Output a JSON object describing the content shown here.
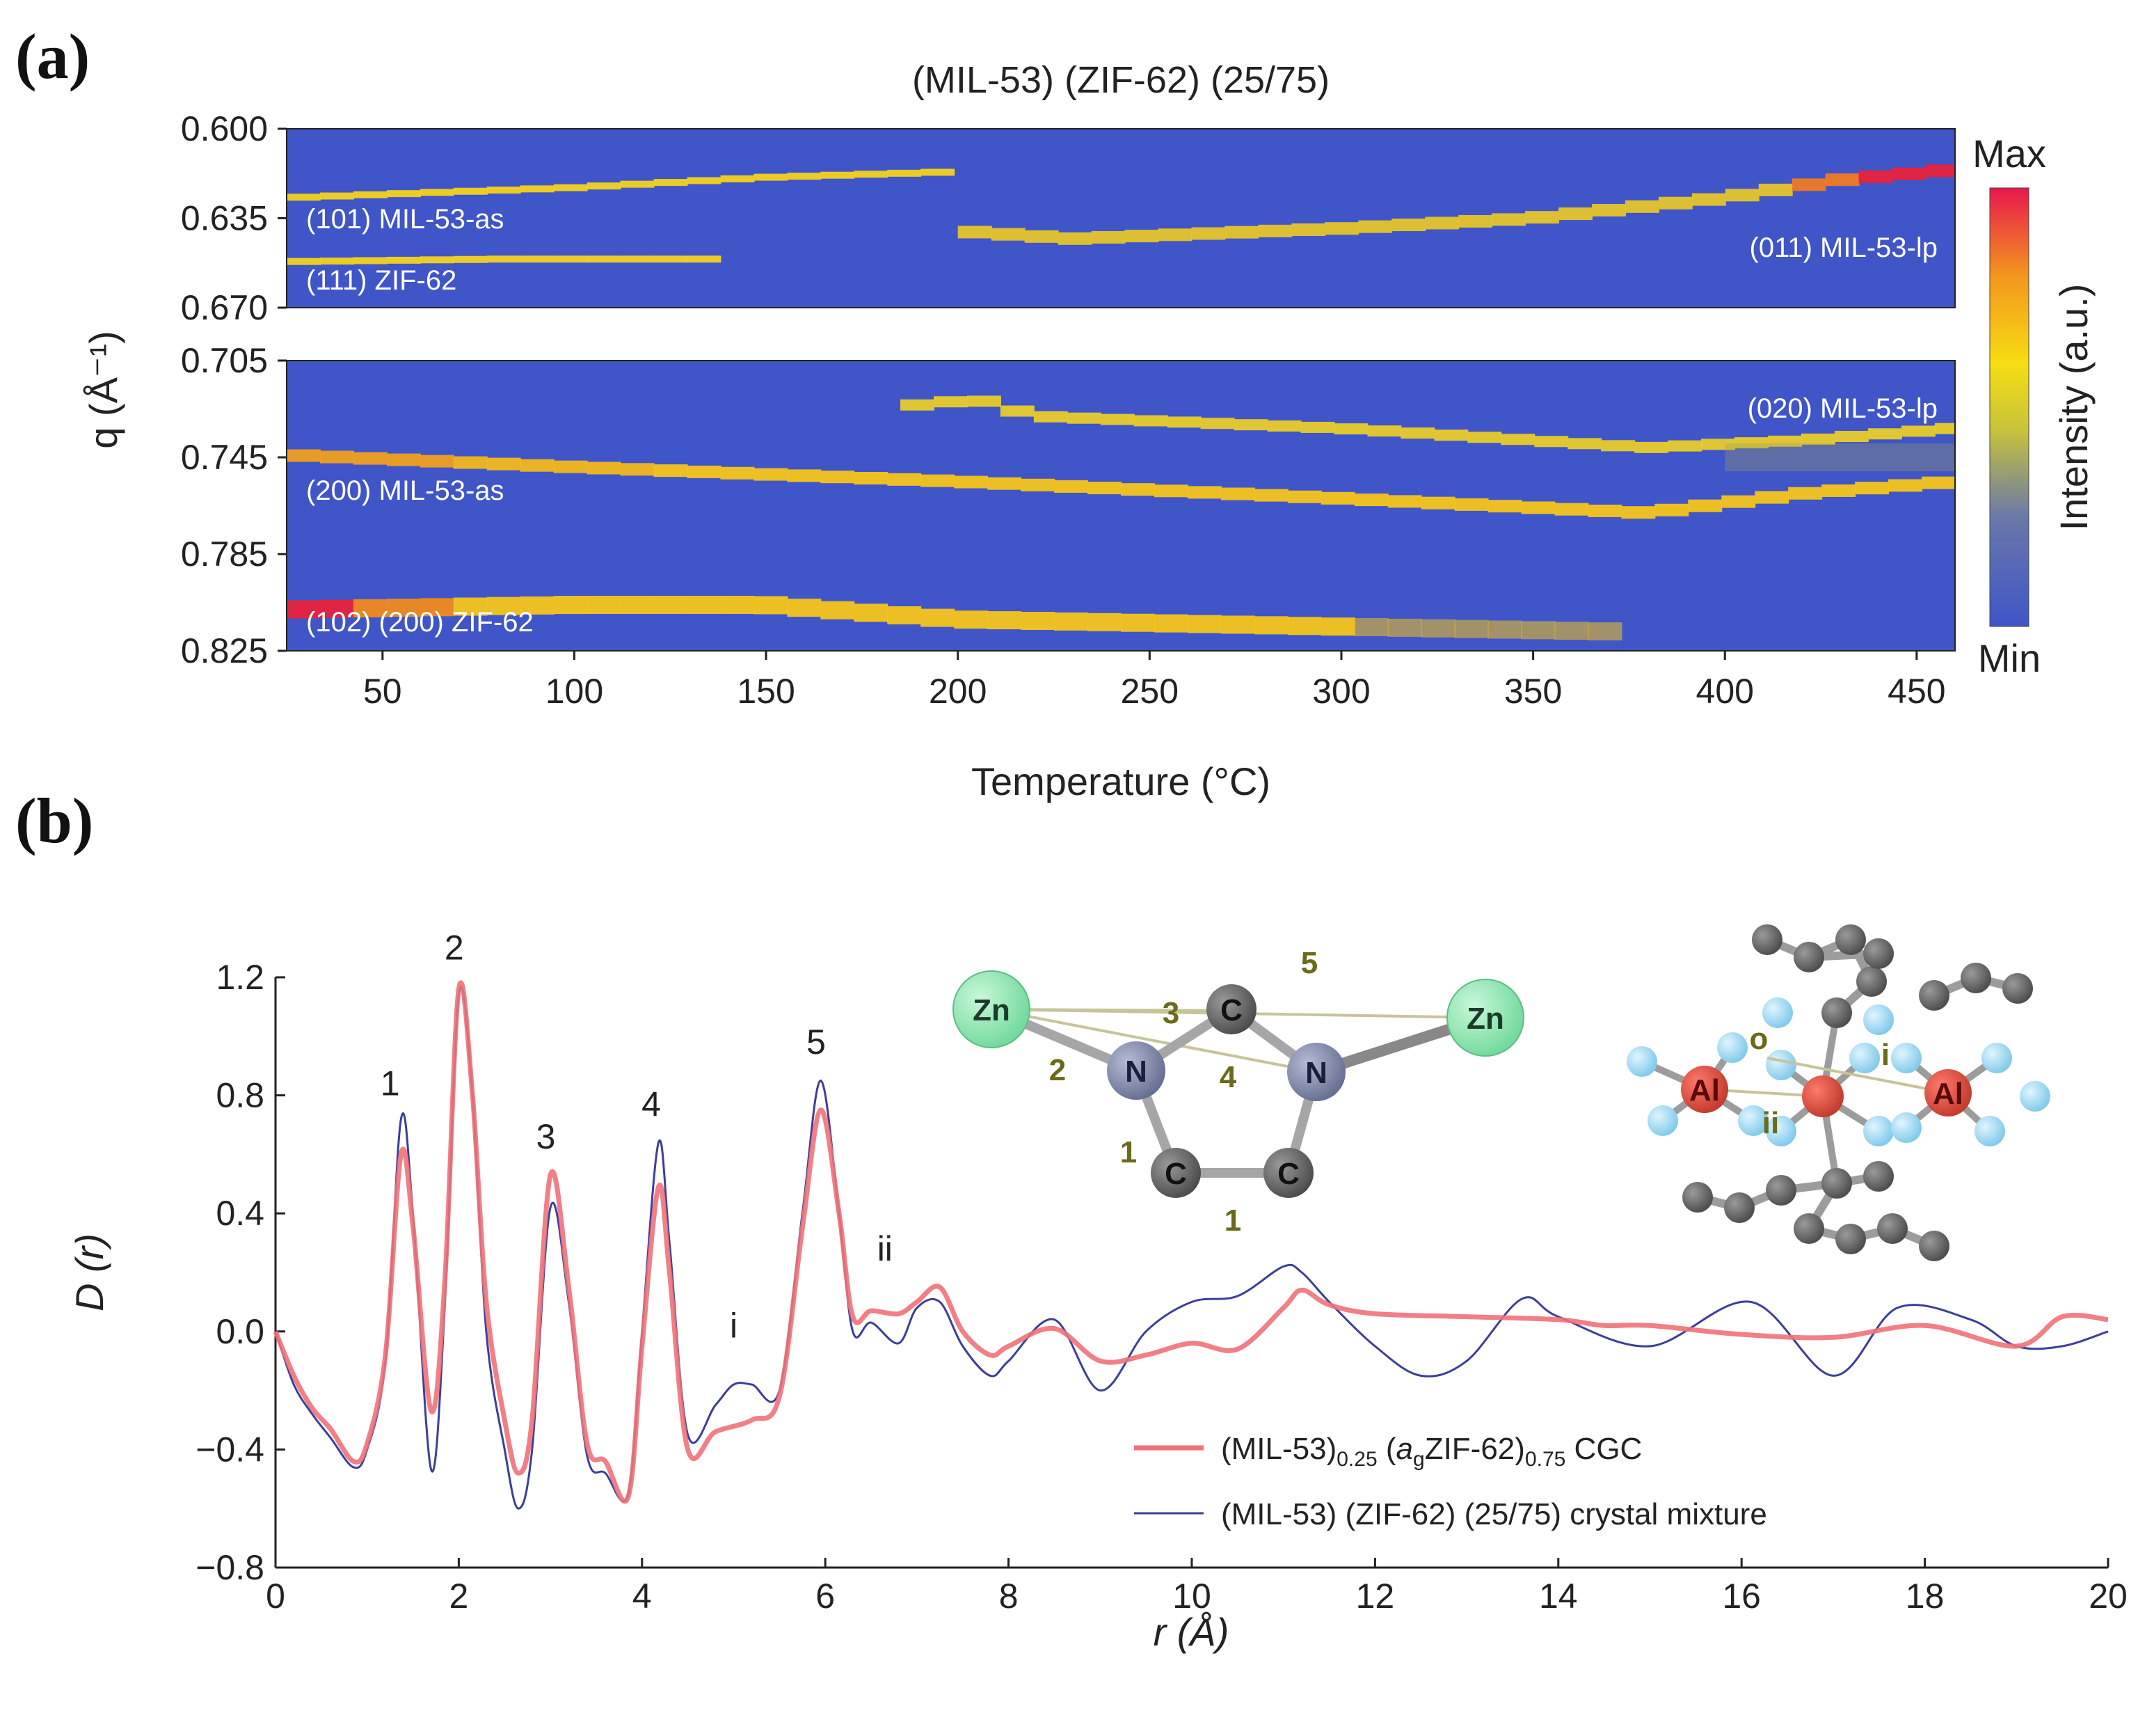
{
  "panel_a_label": "(a)",
  "panel_b_label": "(b)",
  "chart_data": [
    {
      "type": "heatmap",
      "title": "(MIL-53) (ZIF-62) (25/75)",
      "xlabel": "Temperature (°C)",
      "ylabel": "q (Å⁻¹)",
      "xlim": [
        25,
        460
      ],
      "x_ticks": [
        50,
        100,
        150,
        200,
        250,
        300,
        350,
        400,
        450
      ],
      "panels": [
        {
          "ylim": [
            0.6,
            0.67
          ],
          "y_ticks": [
            0.6,
            0.635,
            0.67
          ]
        },
        {
          "ylim": [
            0.705,
            0.825
          ],
          "y_ticks": [
            0.705,
            0.745,
            0.785,
            0.825
          ]
        }
      ],
      "colorbar": {
        "label": "Intensity (a.u.)",
        "max_label": "Max",
        "min_label": "Min"
      },
      "annotations": [
        "(101) MIL-53-as",
        "(111) ZIF-62",
        "(011) MIL-53-lp",
        "(020) MIL-53-lp",
        "(200) MIL-53-as",
        "(102) (200) ZIF-62"
      ],
      "series": [
        {
          "name": "(101) MIL-53-as",
          "points": [
            [
              25,
              0.627
            ],
            [
              100,
              0.623
            ],
            [
              150,
              0.619
            ],
            [
              195,
              0.617
            ]
          ]
        },
        {
          "name": "(111) ZIF-62",
          "points": [
            [
              25,
              0.652
            ],
            [
              80,
              0.651
            ],
            [
              135,
              0.651
            ]
          ]
        },
        {
          "name": "(011) MIL-53-lp",
          "points": [
            [
              200,
              0.64
            ],
            [
              230,
              0.643
            ],
            [
              300,
              0.639
            ],
            [
              350,
              0.635
            ],
            [
              400,
              0.627
            ],
            [
              430,
              0.62
            ],
            [
              460,
              0.616
            ]
          ]
        },
        {
          "name": "(020) MIL-53-lp",
          "points": [
            [
              185,
              0.724
            ],
            [
              205,
              0.721
            ],
            [
              220,
              0.728
            ],
            [
              300,
              0.733
            ],
            [
              380,
              0.741
            ],
            [
              420,
              0.738
            ],
            [
              460,
              0.733
            ]
          ]
        },
        {
          "name": "(200) MIL-53-as",
          "points": [
            [
              25,
              0.744
            ],
            [
              100,
              0.749
            ],
            [
              200,
              0.755
            ],
            [
              300,
              0.762
            ],
            [
              380,
              0.768
            ],
            [
              420,
              0.76
            ],
            [
              460,
              0.755
            ]
          ]
        },
        {
          "name": "(102) (200) ZIF-62",
          "points": [
            [
              25,
              0.808
            ],
            [
              100,
              0.806
            ],
            [
              150,
              0.806
            ],
            [
              200,
              0.812
            ],
            [
              300,
              0.815
            ],
            [
              370,
              0.817
            ]
          ]
        }
      ]
    },
    {
      "type": "line",
      "xlabel": "r (Å)",
      "ylabel": "D (r)",
      "xlim": [
        0,
        20
      ],
      "ylim": [
        -0.8,
        1.2
      ],
      "x_ticks": [
        0,
        2,
        4,
        6,
        8,
        10,
        12,
        14,
        16,
        18,
        20
      ],
      "y_ticks": [
        -0.8,
        -0.4,
        0.0,
        0.4,
        0.8,
        1.2
      ],
      "y_tick_labels": [
        "−0.8",
        "−0.4",
        "0.0",
        "0.4",
        "0.8",
        "1.2"
      ],
      "peak_labels": [
        {
          "text": "1",
          "r": 1.25,
          "d": 0.8
        },
        {
          "text": "2",
          "r": 1.95,
          "d": 1.26
        },
        {
          "text": "3",
          "r": 2.95,
          "d": 0.62
        },
        {
          "text": "4",
          "r": 4.1,
          "d": 0.73
        },
        {
          "text": "5",
          "r": 5.9,
          "d": 0.94
        },
        {
          "text": "ii",
          "r": 6.65,
          "d": 0.24
        },
        {
          "text": "i",
          "r": 5.0,
          "d": -0.02
        }
      ],
      "legend": [
        {
          "main": "(MIL-53)",
          "sub1": "0.25",
          "mid1": " (",
          "italic": "a",
          "sub2": "g",
          "mid2": "ZIF-62)",
          "sub3": "0.75",
          "tail": " CGC"
        },
        {
          "text": "(MIL-53) (ZIF-62) (25/75) crystal mixture"
        }
      ],
      "series": [
        {
          "name": "(MIL-53)0.25(agZIF-62)0.75 CGC",
          "color": "#f07178",
          "x": [
            0,
            0.2,
            0.4,
            0.6,
            0.85,
            1.0,
            1.2,
            1.37,
            1.5,
            1.7,
            1.85,
            2.0,
            2.15,
            2.3,
            2.5,
            2.65,
            2.8,
            3.0,
            3.2,
            3.4,
            3.6,
            3.85,
            4.0,
            4.18,
            4.3,
            4.5,
            4.8,
            5.2,
            5.5,
            5.75,
            5.95,
            6.15,
            6.3,
            6.5,
            6.8,
            7.0,
            7.25,
            7.5,
            7.8,
            8.0,
            8.5,
            9.0,
            9.5,
            10.0,
            10.5,
            11.0,
            11.2,
            11.5,
            12.0,
            13.0,
            14.0,
            14.5,
            15.0,
            16.0,
            17.0,
            18.0,
            19.0,
            19.5,
            20.0
          ],
          "y": [
            0,
            -0.15,
            -0.26,
            -0.33,
            -0.44,
            -0.38,
            -0.08,
            0.6,
            0.36,
            -0.27,
            0.18,
            1.16,
            0.8,
            0.1,
            -0.3,
            -0.48,
            -0.3,
            0.53,
            0.15,
            -0.38,
            -0.44,
            -0.56,
            -0.05,
            0.49,
            0.2,
            -0.4,
            -0.34,
            -0.3,
            -0.22,
            0.35,
            0.75,
            0.4,
            0.05,
            0.07,
            0.06,
            0.1,
            0.15,
            0.0,
            -0.08,
            -0.05,
            0.01,
            -0.1,
            -0.08,
            -0.04,
            -0.06,
            0.08,
            0.14,
            0.09,
            0.06,
            0.05,
            0.04,
            0.02,
            0.02,
            -0.01,
            -0.02,
            0.02,
            -0.05,
            0.05,
            0.04
          ]
        },
        {
          "name": "(MIL-53) (ZIF-62) (25/75) crystal mixture",
          "color": "#3a3f9a",
          "x": [
            0,
            0.2,
            0.4,
            0.6,
            0.85,
            1.0,
            1.2,
            1.37,
            1.5,
            1.7,
            1.85,
            2.0,
            2.15,
            2.3,
            2.5,
            2.65,
            2.8,
            3.0,
            3.2,
            3.4,
            3.6,
            3.85,
            4.0,
            4.18,
            4.3,
            4.5,
            4.8,
            5.0,
            5.2,
            5.5,
            5.75,
            5.95,
            6.15,
            6.3,
            6.5,
            6.8,
            7.0,
            7.25,
            7.5,
            7.8,
            8.0,
            8.5,
            9.0,
            9.5,
            10.0,
            10.5,
            11.0,
            11.2,
            11.5,
            12.0,
            12.5,
            13.0,
            13.6,
            14.0,
            15.0,
            16.1,
            17.0,
            17.7,
            18.5,
            19.0,
            19.5,
            20.0
          ],
          "y": [
            0,
            -0.18,
            -0.28,
            -0.36,
            -0.46,
            -0.4,
            -0.1,
            0.72,
            0.4,
            -0.47,
            0.1,
            1.14,
            0.8,
            0.0,
            -0.4,
            -0.6,
            -0.4,
            0.42,
            0.1,
            -0.42,
            -0.48,
            -0.55,
            0.0,
            0.64,
            0.3,
            -0.35,
            -0.25,
            -0.18,
            -0.18,
            -0.2,
            0.4,
            0.85,
            0.4,
            0.0,
            0.03,
            -0.04,
            0.08,
            0.1,
            -0.05,
            -0.15,
            -0.1,
            0.04,
            -0.2,
            0.0,
            0.1,
            0.12,
            0.22,
            0.2,
            0.1,
            -0.05,
            -0.15,
            -0.1,
            0.11,
            0.05,
            -0.05,
            0.1,
            -0.15,
            0.08,
            0.04,
            -0.05,
            -0.05,
            0.0
          ]
        }
      ]
    }
  ],
  "inset_zif": {
    "atoms": [
      "Zn",
      "N",
      "C",
      "N",
      "Zn",
      "C",
      "C"
    ],
    "bond_labels": [
      "1",
      "1",
      "2",
      "3",
      "4",
      "5"
    ]
  },
  "inset_mil": {
    "atoms": [
      "Al",
      "Al"
    ],
    "bond_labels": [
      "o",
      "i",
      "ii"
    ]
  },
  "colors": {
    "heat_bg": "#3f55c8",
    "heat_line": "#f4d21e",
    "heat_hot": "#e8233c",
    "zn": "#7be4a4",
    "n": "#7f87a8",
    "c": "#6e6e6e",
    "al": "#c21a1a",
    "o": "#9fdcf5"
  }
}
